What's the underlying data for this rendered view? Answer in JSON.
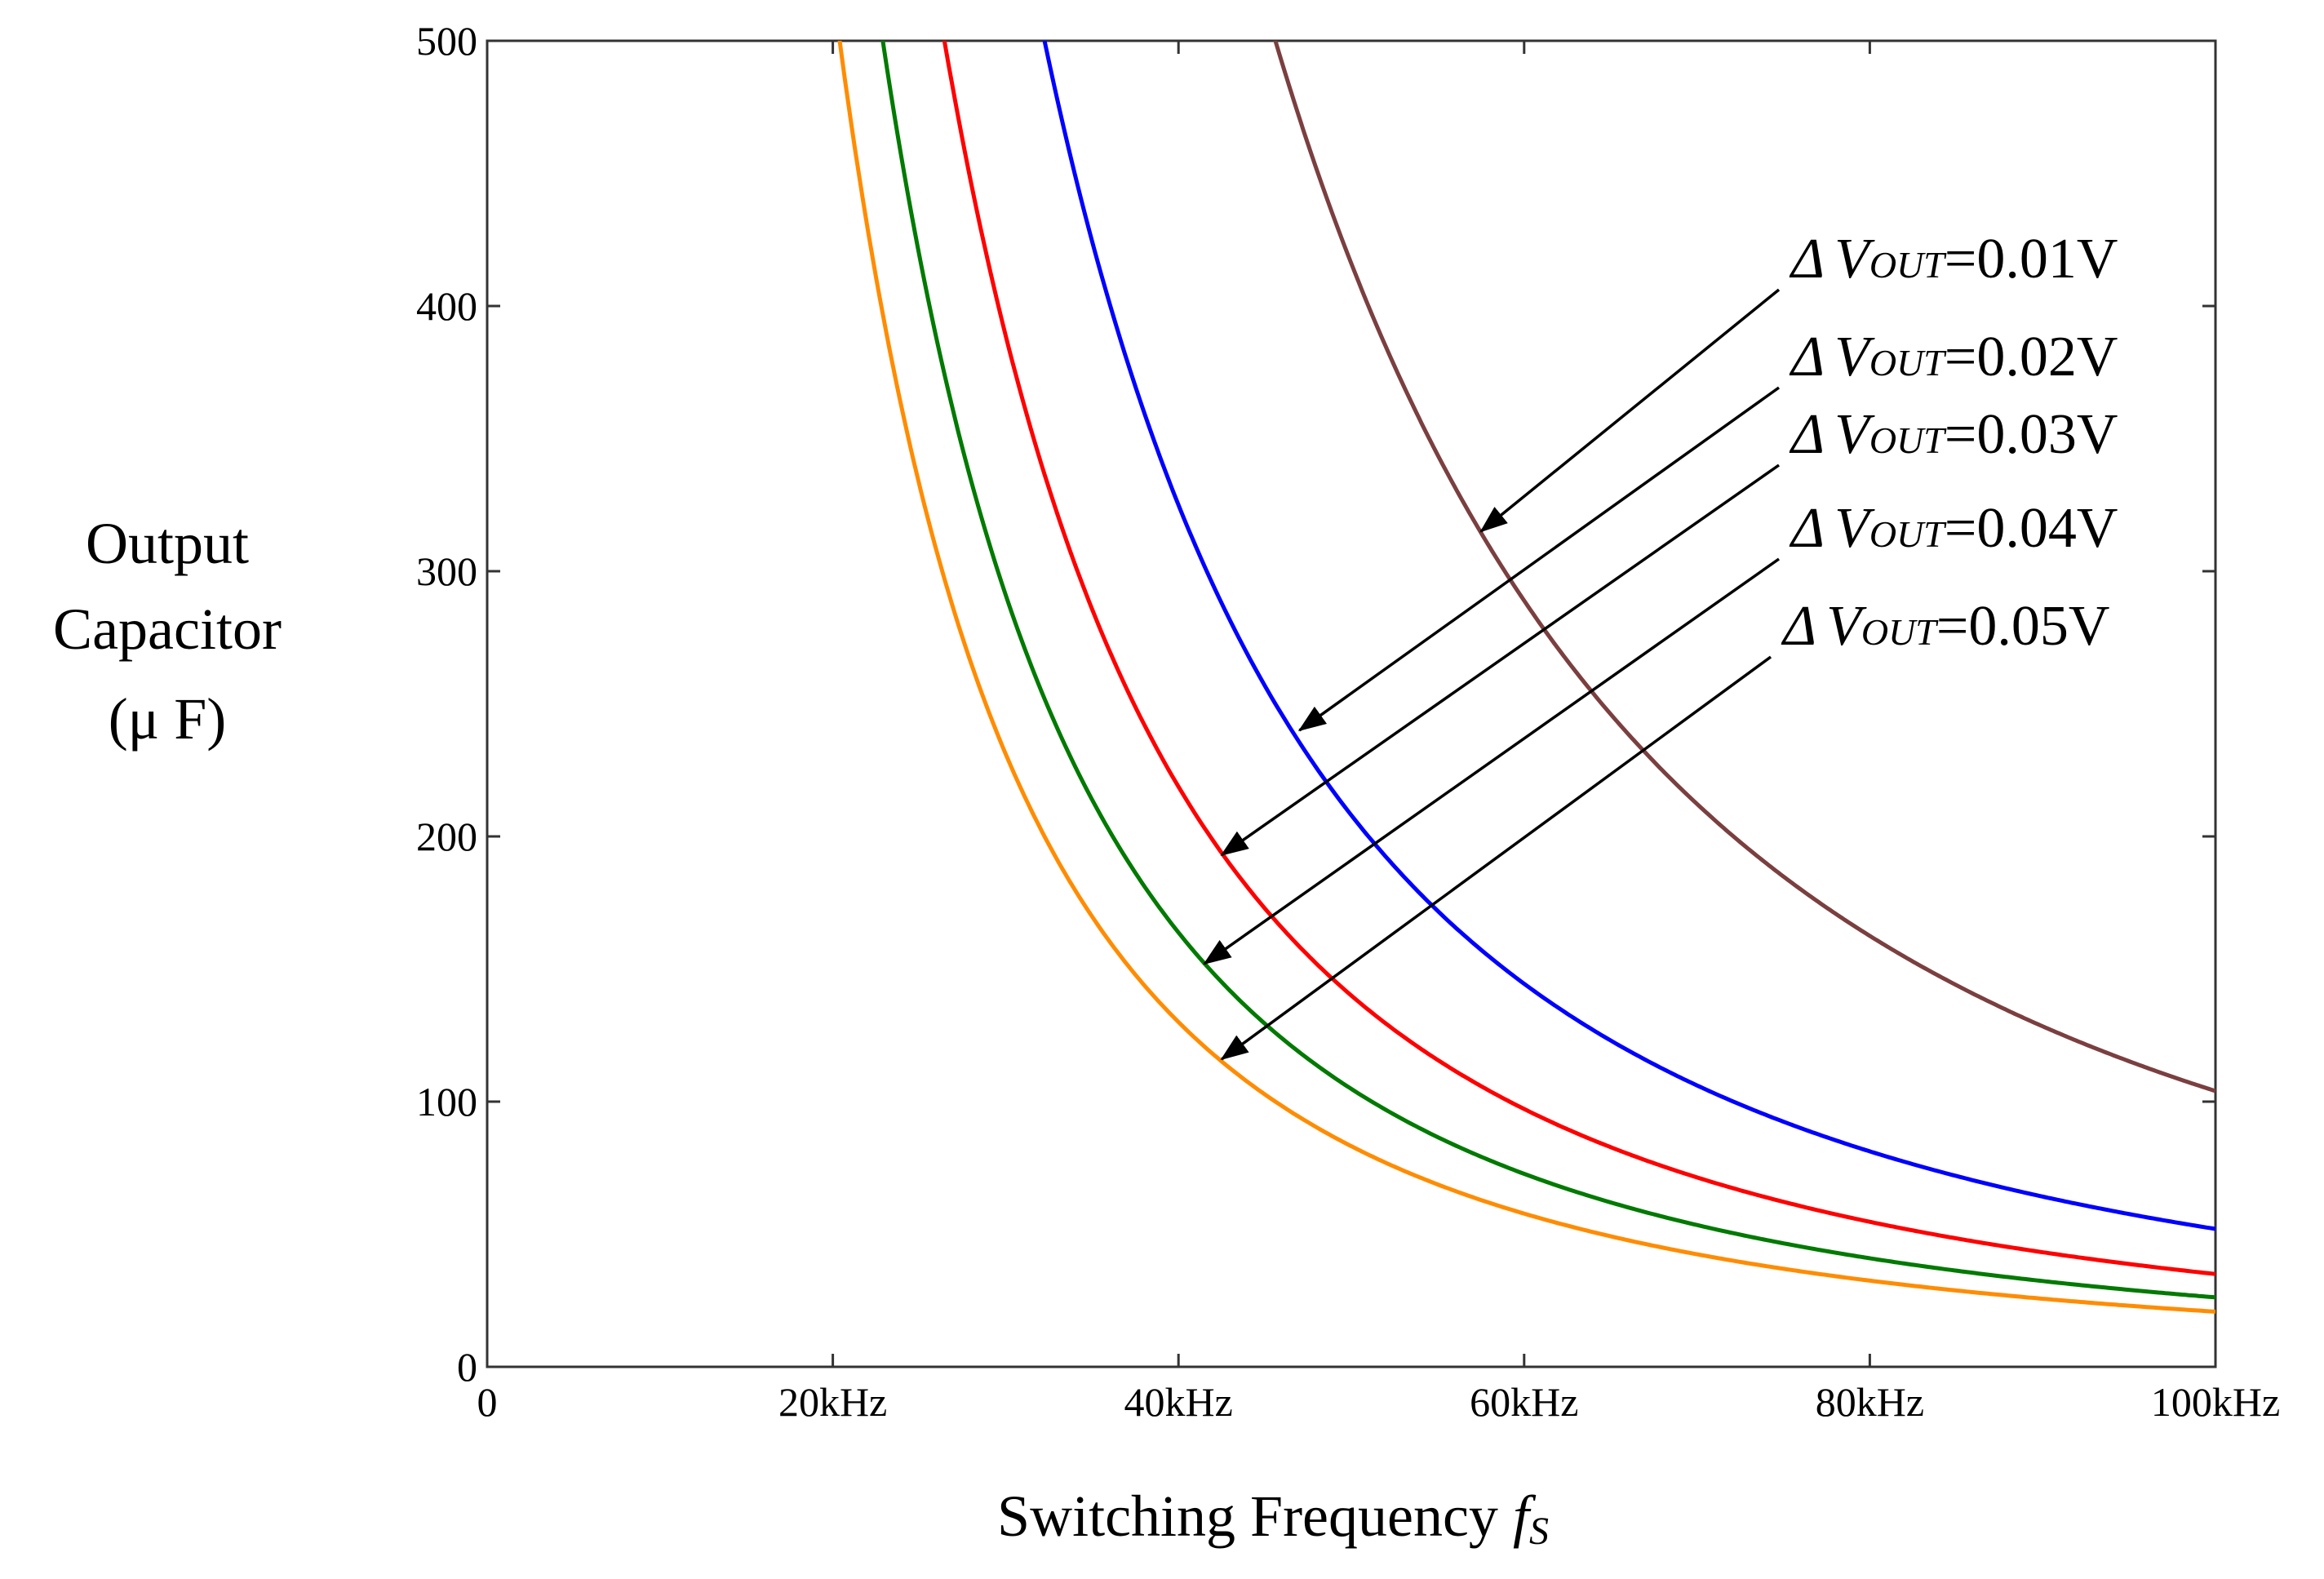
{
  "chart_data": {
    "type": "line",
    "title": "",
    "xlabel": {
      "text": "Switching Frequency ",
      "symbol": "f",
      "symbol_sub": "S"
    },
    "ylabel": {
      "lines": [
        "Output",
        "Capacitor",
        "(μ F)"
      ]
    },
    "xlim": [
      0,
      100
    ],
    "ylim": [
      0,
      500
    ],
    "x_unit": "kHz",
    "x_ticks": [
      {
        "value": 0,
        "label": "0"
      },
      {
        "value": 20,
        "label": "20kHz"
      },
      {
        "value": 40,
        "label": "40kHz"
      },
      {
        "value": 60,
        "label": "60kHz"
      },
      {
        "value": 80,
        "label": "80kHz"
      },
      {
        "value": 100,
        "label": "100kHz"
      }
    ],
    "y_ticks": [
      {
        "value": 0,
        "label": "0"
      },
      {
        "value": 100,
        "label": "100"
      },
      {
        "value": 200,
        "label": "200"
      },
      {
        "value": 300,
        "label": "300"
      },
      {
        "value": 400,
        "label": "400"
      },
      {
        "value": 500,
        "label": "500"
      }
    ],
    "grid": false,
    "model": "C = K / f^2 (f in kHz, C in μF)",
    "series": [
      {
        "name": "ΔVOUT=0.01V",
        "delta_v": "0.01V",
        "color": "#7b3f3f",
        "K": 1040000,
        "points": [
          [
            45.6,
            500
          ],
          [
            50,
            416
          ],
          [
            60,
            289
          ],
          [
            70,
            212
          ],
          [
            80,
            163
          ],
          [
            90,
            128
          ],
          [
            100,
            104
          ]
        ],
        "arrow_target": [
          57.5,
          315
        ]
      },
      {
        "name": "ΔVOUT=0.02V",
        "delta_v": "0.02V",
        "color": "#0000ff",
        "K": 520000,
        "points": [
          [
            32.2,
            500
          ],
          [
            40,
            325
          ],
          [
            50,
            208
          ],
          [
            60,
            144
          ],
          [
            70,
            106
          ],
          [
            80,
            81
          ],
          [
            90,
            64
          ],
          [
            100,
            52
          ]
        ],
        "arrow_target": [
          47,
          240
        ]
      },
      {
        "name": "ΔVOUT=0.03V",
        "delta_v": "0.03V",
        "color": "#ff0000",
        "K": 350000,
        "points": [
          [
            26.5,
            500
          ],
          [
            30,
            389
          ],
          [
            40,
            219
          ],
          [
            50,
            140
          ],
          [
            60,
            97
          ],
          [
            70,
            71
          ],
          [
            80,
            55
          ],
          [
            90,
            43
          ],
          [
            100,
            35
          ]
        ],
        "arrow_target": [
          42.5,
          193
        ]
      },
      {
        "name": "ΔVOUT=0.04V",
        "delta_v": "0.04V",
        "color": "#007a00",
        "K": 262000,
        "points": [
          [
            22.9,
            500
          ],
          [
            30,
            291
          ],
          [
            40,
            164
          ],
          [
            50,
            105
          ],
          [
            60,
            73
          ],
          [
            70,
            53
          ],
          [
            80,
            41
          ],
          [
            90,
            32
          ],
          [
            100,
            26
          ]
        ],
        "arrow_target": [
          41.5,
          152
        ]
      },
      {
        "name": "ΔVOUT=0.05V",
        "delta_v": "0.05V",
        "color": "#ff8c00",
        "K": 208000,
        "points": [
          [
            20.4,
            500
          ],
          [
            30,
            231
          ],
          [
            40,
            130
          ],
          [
            50,
            83
          ],
          [
            60,
            58
          ],
          [
            70,
            42
          ],
          [
            80,
            33
          ],
          [
            90,
            26
          ],
          [
            100,
            21
          ]
        ],
        "arrow_target": [
          42.5,
          116
        ]
      }
    ],
    "annotations": [
      {
        "prefix": "Δ",
        "var": "V",
        "sub": "OUT",
        "suffix": "=0.01V"
      },
      {
        "prefix": "Δ",
        "var": "V",
        "sub": "OUT",
        "suffix": "=0.02V"
      },
      {
        "prefix": "Δ",
        "var": "V",
        "sub": "OUT",
        "suffix": "=0.03V"
      },
      {
        "prefix": "Δ",
        "var": "V",
        "sub": "OUT",
        "suffix": "=0.04V"
      },
      {
        "prefix": "Δ",
        "var": "V",
        "sub": "OUT",
        "suffix": "=0.05V"
      }
    ]
  }
}
